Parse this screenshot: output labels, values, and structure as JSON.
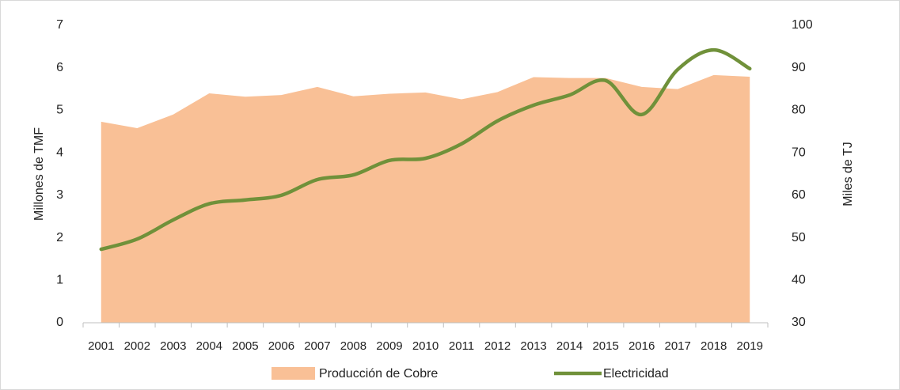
{
  "chart_data": {
    "type": "area",
    "categories": [
      "2001",
      "2002",
      "2003",
      "2004",
      "2005",
      "2006",
      "2007",
      "2008",
      "2009",
      "2010",
      "2011",
      "2012",
      "2013",
      "2014",
      "2015",
      "2016",
      "2017",
      "2018",
      "2019"
    ],
    "series": [
      {
        "name": "Producción de Cobre",
        "type": "area",
        "color": "#f9c096",
        "axis": "y",
        "values": [
          4.73,
          4.58,
          4.9,
          5.4,
          5.32,
          5.36,
          5.55,
          5.33,
          5.39,
          5.42,
          5.26,
          5.43,
          5.78,
          5.76,
          5.76,
          5.55,
          5.5,
          5.83,
          5.79
        ]
      },
      {
        "name": "Electricidad",
        "type": "line",
        "color": "#70913a",
        "axis": "y2",
        "values": [
          47.3,
          49.7,
          54.2,
          58,
          58.9,
          60,
          63.7,
          64.8,
          68.2,
          68.7,
          72.1,
          77.5,
          81.2,
          83.6,
          87,
          79,
          89.6,
          94.2,
          89.8
        ]
      }
    ],
    "ylabel": "Millones de TMF",
    "y2label": "Miles de TJ",
    "ylim": [
      0,
      7
    ],
    "yticks": [
      0,
      1,
      2,
      3,
      4,
      5,
      6,
      7
    ],
    "y2lim": [
      30,
      100
    ],
    "y2ticks": [
      30,
      40,
      50,
      60,
      70,
      80,
      90,
      100
    ],
    "grid": false,
    "legend": "bottom"
  }
}
